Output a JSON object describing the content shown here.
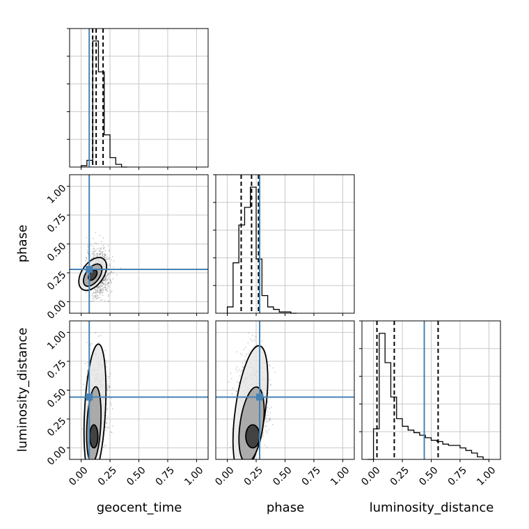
{
  "chart_data": {
    "type": "corner",
    "parameters": [
      "geocent_time",
      "phase",
      "luminosity_distance"
    ],
    "axis_range": [
      -0.1,
      1.1
    ],
    "ticks": [
      0,
      0.25,
      0.5,
      0.75,
      1.0
    ],
    "tick_labels": [
      "0.00",
      "0.25",
      "0.50",
      "0.75",
      "1.00"
    ],
    "grid": true,
    "truth": {
      "geocent_time": 0.07,
      "phase": 0.28,
      "luminosity_distance": 0.44
    },
    "truth_color": "#4682b4",
    "histograms": {
      "geocent_time": {
        "bin_edges": [
          0.0,
          0.05,
          0.1,
          0.15,
          0.2,
          0.25,
          0.3,
          0.35,
          0.4
        ],
        "counts": [
          1,
          5,
          94,
          71,
          24,
          7,
          2,
          0
        ],
        "quantiles": [
          0.1,
          0.13,
          0.19
        ]
      },
      "phase": {
        "bin_edges": [
          0.0,
          0.05,
          0.1,
          0.15,
          0.2,
          0.25,
          0.3,
          0.35,
          0.4,
          0.45,
          0.5,
          0.55,
          0.6
        ],
        "counts": [
          5,
          40,
          70,
          84,
          100,
          43,
          14,
          5,
          3,
          1,
          1,
          0
        ],
        "quantiles": [
          0.12,
          0.21,
          0.27
        ]
      },
      "luminosity_distance": {
        "bin_edges": [
          -0.05,
          0.0,
          0.05,
          0.1,
          0.15,
          0.2,
          0.25,
          0.3,
          0.35,
          0.4,
          0.45,
          0.5,
          0.55,
          0.6,
          0.65,
          0.7,
          0.75,
          0.8,
          0.85,
          0.9,
          0.95,
          1.0
        ],
        "counts": [
          0,
          24,
          99,
          76,
          49,
          32,
          26,
          23,
          21,
          19,
          17,
          15,
          14,
          12,
          11,
          11,
          9,
          7,
          5,
          2,
          0
        ],
        "quantiles": [
          0.03,
          0.18,
          0.56
        ]
      }
    },
    "contours": {
      "phase_vs_geocent_time": [
        {
          "x": 0.1,
          "y": 0.24,
          "rx": 0.095,
          "ry": 0.16,
          "angle": 35
        },
        {
          "x": 0.1,
          "y": 0.23,
          "rx": 0.06,
          "ry": 0.11,
          "angle": 35
        },
        {
          "x": 0.1,
          "y": 0.23,
          "rx": 0.03,
          "ry": 0.05,
          "angle": 35
        }
      ],
      "luminosity_distance_vs_geocent_time": [
        {
          "x": 0.12,
          "y": 0.32,
          "rx": 0.09,
          "ry": 0.58,
          "angle": 3
        },
        {
          "x": 0.11,
          "y": 0.2,
          "rx": 0.06,
          "ry": 0.33,
          "angle": 3
        },
        {
          "x": 0.11,
          "y": 0.1,
          "rx": 0.035,
          "ry": 0.1,
          "angle": 0
        }
      ],
      "luminosity_distance_vs_phase": [
        {
          "x": 0.2,
          "y": 0.33,
          "rx": 0.13,
          "ry": 0.56,
          "angle": 8
        },
        {
          "x": 0.21,
          "y": 0.2,
          "rx": 0.1,
          "ry": 0.33,
          "angle": 8
        },
        {
          "x": 0.22,
          "y": 0.1,
          "rx": 0.06,
          "ry": 0.1,
          "angle": 0
        }
      ]
    },
    "scatter_clouds": {
      "phase_vs_geocent_time": {
        "x_center": 0.15,
        "x_spread": 0.1,
        "y_center": 0.25,
        "y_spread": 0.15
      },
      "luminosity_distance_vs_geocent_time": {
        "x_center": 0.14,
        "x_spread": 0.09,
        "y_center": 0.4,
        "y_spread": 0.3
      },
      "luminosity_distance_vs_phase": {
        "x_center": 0.22,
        "x_spread": 0.13,
        "y_center": 0.4,
        "y_spread": 0.3
      }
    }
  }
}
